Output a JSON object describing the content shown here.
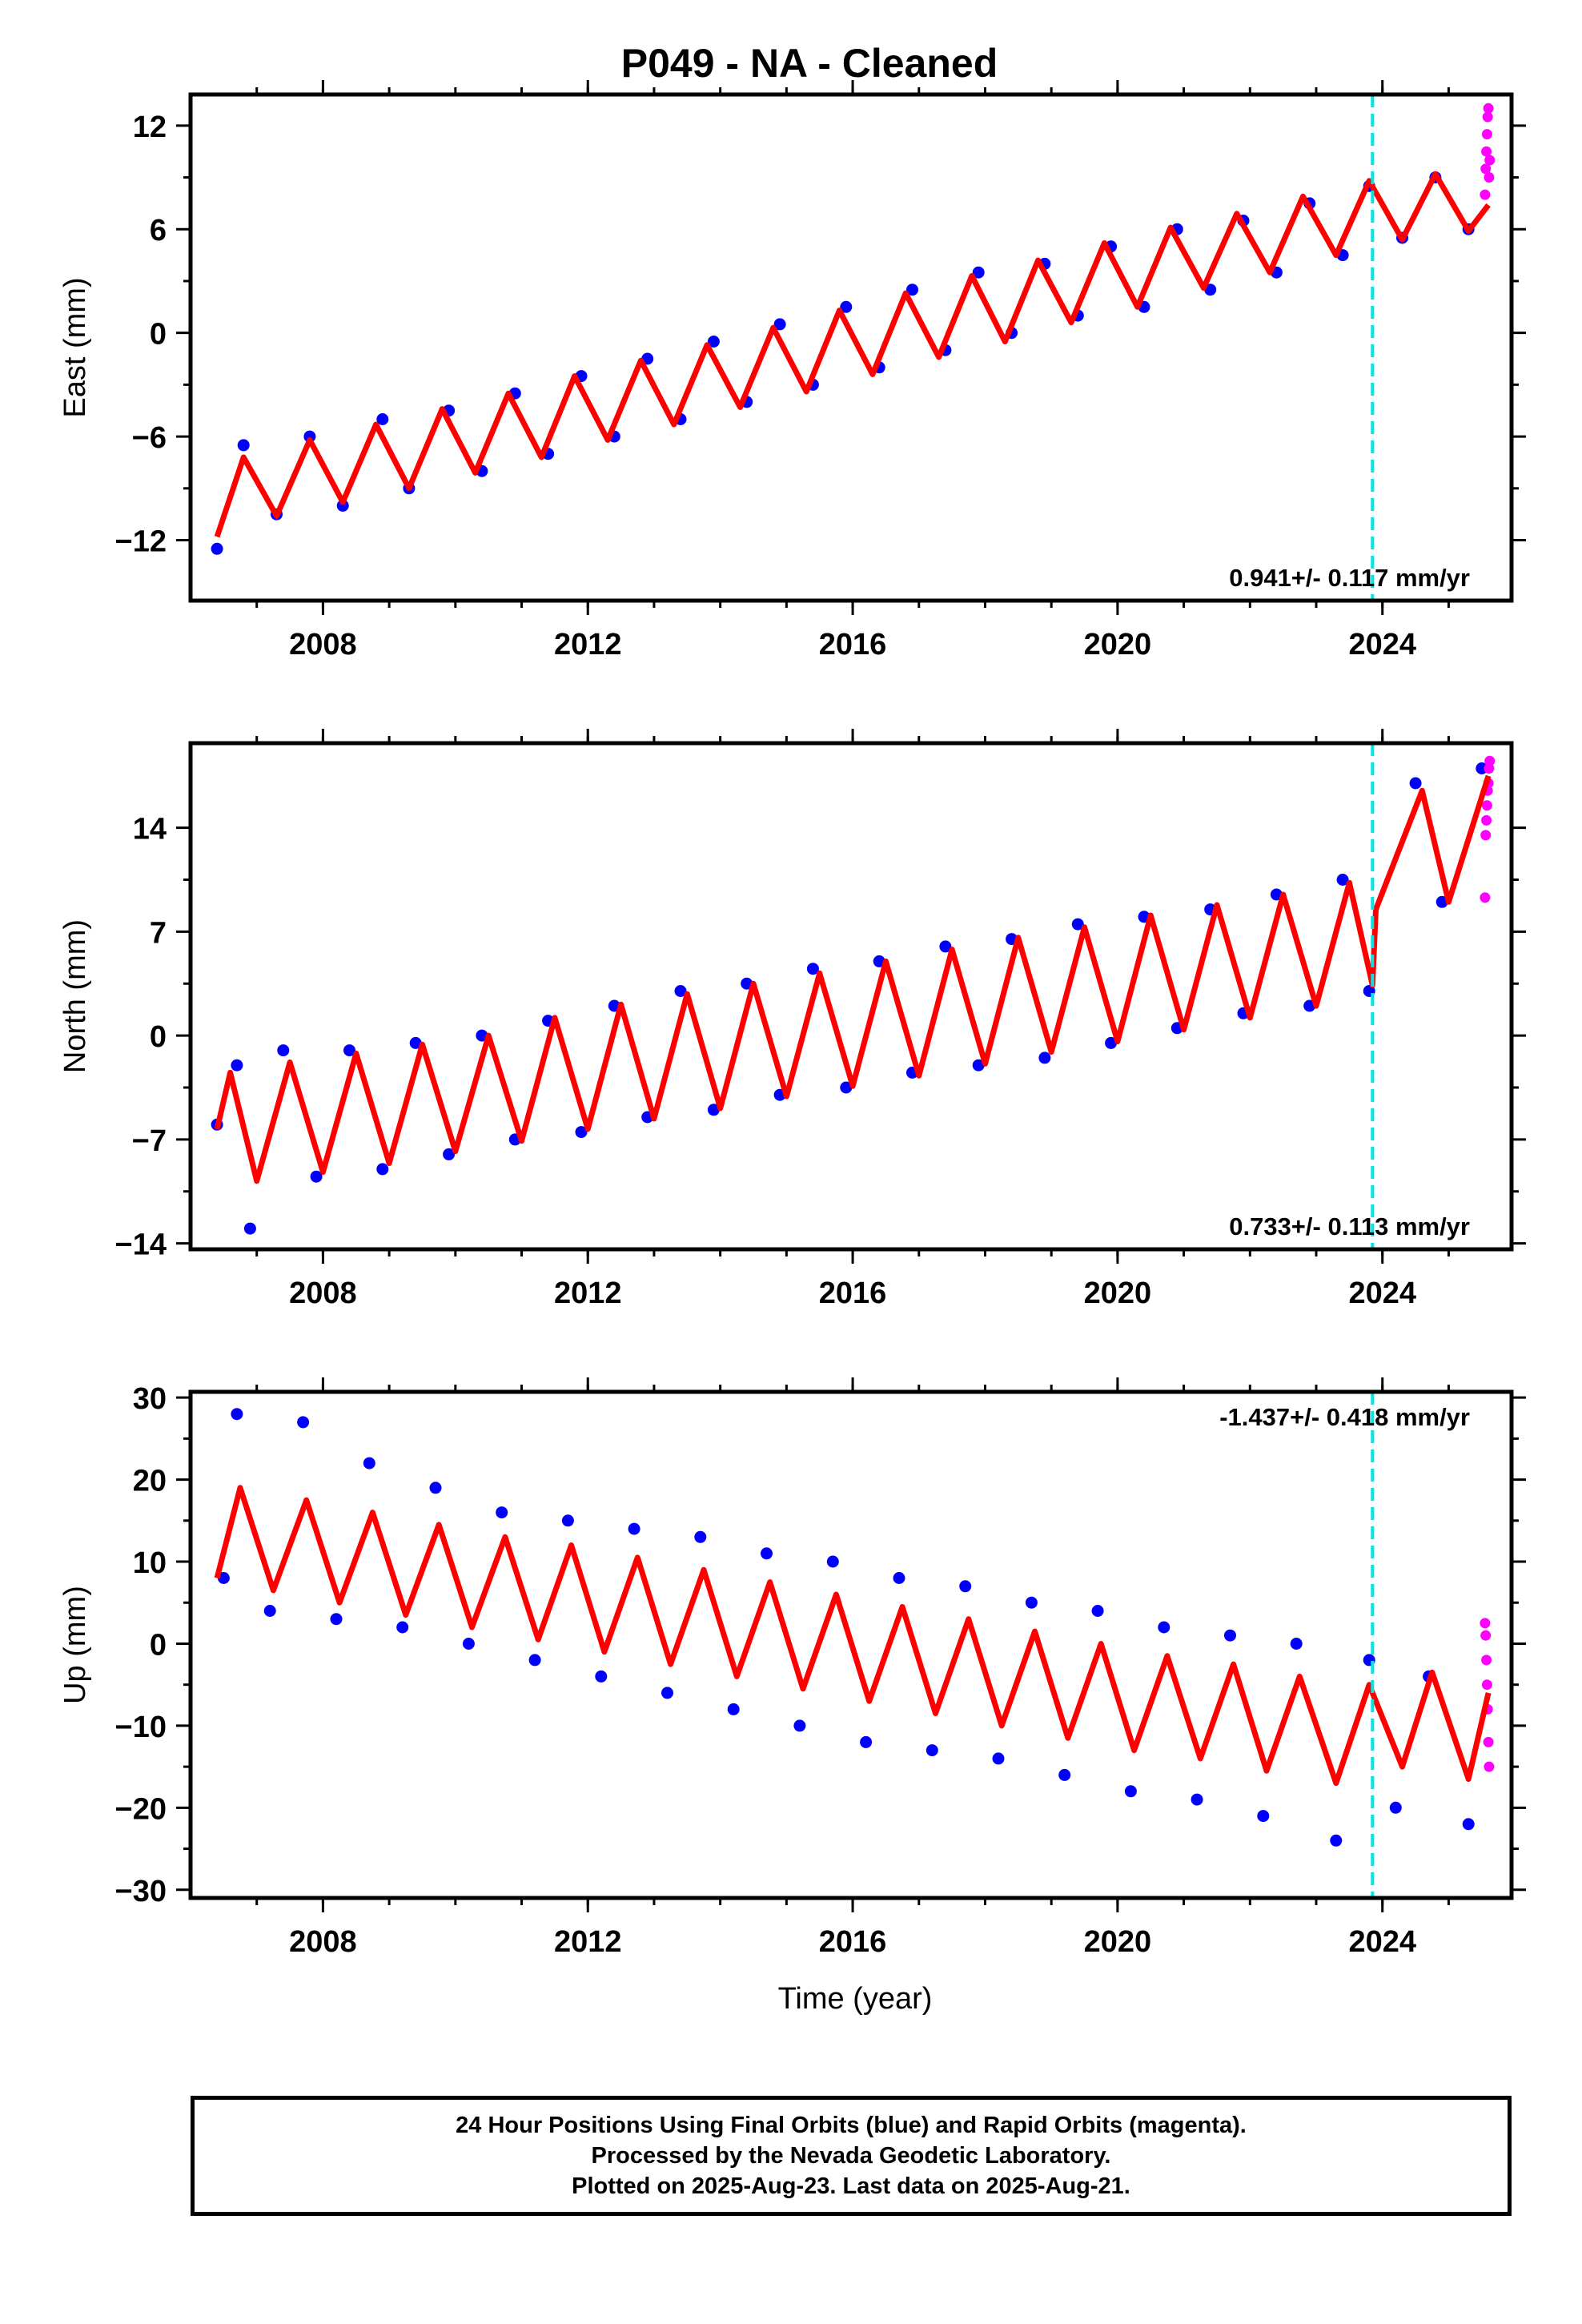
{
  "chart_data": {
    "type": "scatter",
    "title": "P049  - NA - Cleaned",
    "xlabel": "Time (year)",
    "xlim": [
      2006.0,
      2025.95
    ],
    "xticks": [
      2008,
      2012,
      2016,
      2020,
      2024
    ],
    "vertical_marker": {
      "x": 2023.85,
      "color": "#00e5e5",
      "style": "dashed"
    },
    "colors": {
      "final": "#0000ff",
      "rapid": "#ff00ff",
      "model": "#ff0000"
    },
    "panels": [
      {
        "ylabel": "East (mm)",
        "ylim": [
          -15.5,
          13.8
        ],
        "yticks": [
          -12,
          -6,
          0,
          6,
          12
        ],
        "ytick_labels": [
          "−12",
          "−6",
          "0",
          "6",
          "12"
        ],
        "rate_label": "0.941+/- 0.117 mm/yr",
        "rate_position": "bottom-right",
        "series": [
          {
            "type": "scatter",
            "x": [
              2006.4,
              2006.8,
              2007.3,
              2007.8,
              2008.3,
              2008.9,
              2009.3,
              2009.9,
              2010.4,
              2010.9,
              2011.4,
              2011.9,
              2012.4,
              2012.9,
              2013.4,
              2013.9,
              2014.4,
              2014.9,
              2015.4,
              2015.9,
              2016.4,
              2016.9,
              2017.4,
              2017.9,
              2018.4,
              2018.9,
              2019.4,
              2019.9,
              2020.4,
              2020.9,
              2021.4,
              2021.9,
              2022.4,
              2022.9,
              2023.4,
              2023.8,
              2024.3,
              2024.8,
              2025.3
            ],
            "y": [
              -12.5,
              -6.5,
              -10.5,
              -6.0,
              -10.0,
              -5.0,
              -9.0,
              -4.5,
              -8.0,
              -3.5,
              -7.0,
              -2.5,
              -6.0,
              -1.5,
              -5.0,
              -0.5,
              -4.0,
              0.5,
              -3.0,
              1.5,
              -2.0,
              2.5,
              -1.0,
              3.5,
              0.0,
              4.0,
              1.0,
              5.0,
              1.5,
              6.0,
              2.5,
              6.5,
              3.5,
              7.5,
              4.5,
              8.5,
              5.5,
              9.0,
              6.0
            ]
          },
          {
            "type": "rapid",
            "x": [
              2025.55,
              2025.56,
              2025.57,
              2025.58,
              2025.59,
              2025.6,
              2025.61,
              2025.62
            ],
            "y": [
              8.0,
              9.5,
              10.5,
              11.5,
              12.5,
              13.0,
              9.0,
              10.0
            ]
          },
          {
            "type": "model",
            "x": [
              2006.4,
              2006.8,
              2007.3,
              2007.8,
              2008.3,
              2008.8,
              2009.3,
              2009.8,
              2010.3,
              2010.8,
              2011.3,
              2011.8,
              2012.3,
              2012.8,
              2013.3,
              2013.8,
              2014.3,
              2014.8,
              2015.3,
              2015.8,
              2016.3,
              2016.8,
              2017.3,
              2017.8,
              2018.3,
              2018.8,
              2019.3,
              2019.8,
              2020.3,
              2020.8,
              2021.3,
              2021.8,
              2022.3,
              2022.8,
              2023.3,
              2023.8,
              2024.3,
              2024.8,
              2025.3,
              2025.6
            ],
            "y": [
              -11.8,
              -7.2,
              -10.6,
              -6.2,
              -9.8,
              -5.3,
              -9.0,
              -4.4,
              -8.1,
              -3.5,
              -7.2,
              -2.5,
              -6.2,
              -1.6,
              -5.3,
              -0.7,
              -4.3,
              0.3,
              -3.4,
              1.3,
              -2.4,
              2.3,
              -1.4,
              3.3,
              -0.5,
              4.2,
              0.6,
              5.2,
              1.5,
              6.1,
              2.6,
              6.9,
              3.5,
              7.9,
              4.5,
              8.8,
              5.4,
              9.2,
              5.9,
              7.4
            ]
          }
        ]
      },
      {
        "ylabel": "North (mm)",
        "ylim": [
          -14.4,
          19.7
        ],
        "yticks": [
          -14,
          -7,
          0,
          7,
          14
        ],
        "ytick_labels": [
          "−14",
          "−7",
          "0",
          "7",
          "14"
        ],
        "rate_label": "0.733+/- 0.113 mm/yr",
        "rate_position": "bottom-right",
        "series": [
          {
            "type": "scatter",
            "x": [
              2006.4,
              2006.7,
              2006.9,
              2007.4,
              2007.9,
              2008.4,
              2008.9,
              2009.4,
              2009.9,
              2010.4,
              2010.9,
              2011.4,
              2011.9,
              2012.4,
              2012.9,
              2013.4,
              2013.9,
              2014.4,
              2014.9,
              2015.4,
              2015.9,
              2016.4,
              2016.9,
              2017.4,
              2017.9,
              2018.4,
              2018.9,
              2019.4,
              2019.9,
              2020.4,
              2020.9,
              2021.4,
              2021.9,
              2022.4,
              2022.9,
              2023.4,
              2023.8,
              2024.5,
              2024.9,
              2025.5
            ],
            "y": [
              -6.0,
              -2.0,
              -13.0,
              -1.0,
              -9.5,
              -1.0,
              -9.0,
              -0.5,
              -8.0,
              0.0,
              -7.0,
              1.0,
              -6.5,
              2.0,
              -5.5,
              3.0,
              -5.0,
              3.5,
              -4.0,
              4.5,
              -3.5,
              5.0,
              -2.5,
              6.0,
              -2.0,
              6.5,
              -1.5,
              7.5,
              -0.5,
              8.0,
              0.5,
              8.5,
              1.5,
              9.5,
              2.0,
              10.5,
              3.0,
              17.0,
              9.0,
              18.0
            ]
          },
          {
            "type": "rapid",
            "x": [
              2025.55,
              2025.56,
              2025.57,
              2025.58,
              2025.59,
              2025.6,
              2025.61,
              2025.62
            ],
            "y": [
              9.3,
              13.5,
              14.5,
              15.5,
              16.5,
              17.0,
              18.0,
              18.5
            ]
          },
          {
            "type": "model",
            "x": [
              2006.4,
              2006.6,
              2007.0,
              2007.5,
              2008.0,
              2008.5,
              2009.0,
              2009.5,
              2010.0,
              2010.5,
              2011.0,
              2011.5,
              2012.0,
              2012.5,
              2013.0,
              2013.5,
              2014.0,
              2014.5,
              2015.0,
              2015.5,
              2016.0,
              2016.5,
              2017.0,
              2017.5,
              2018.0,
              2018.5,
              2019.0,
              2019.5,
              2020.0,
              2020.5,
              2021.0,
              2021.5,
              2022.0,
              2022.5,
              2023.0,
              2023.5,
              2023.85,
              2023.9,
              2024.6,
              2025.0,
              2025.6
            ],
            "y": [
              -6.3,
              -2.5,
              -9.8,
              -1.8,
              -9.2,
              -1.2,
              -8.6,
              -0.6,
              -7.8,
              0.0,
              -7.1,
              1.2,
              -6.3,
              2.1,
              -5.6,
              2.8,
              -4.9,
              3.5,
              -4.1,
              4.2,
              -3.4,
              5.0,
              -2.7,
              5.8,
              -1.9,
              6.6,
              -1.1,
              7.3,
              -0.4,
              8.1,
              0.4,
              8.8,
              1.2,
              9.5,
              2.0,
              10.3,
              3.4,
              8.5,
              16.5,
              9.0,
              17.5
            ]
          }
        ]
      },
      {
        "ylabel": "Up (mm)",
        "ylim": [
          -31.0,
          30.7
        ],
        "yticks": [
          -30,
          -20,
          -10,
          0,
          10,
          20,
          30
        ],
        "ytick_labels": [
          "−30",
          "−20",
          "−10",
          "0",
          "10",
          "20",
          "30"
        ],
        "rate_label": "-1.437+/- 0.418 mm/yr",
        "rate_position": "top-right",
        "series": [
          {
            "type": "scatter",
            "x": [
              2006.5,
              2006.7,
              2007.2,
              2007.7,
              2008.2,
              2008.7,
              2009.2,
              2009.7,
              2010.2,
              2010.7,
              2011.2,
              2011.7,
              2012.2,
              2012.7,
              2013.2,
              2013.7,
              2014.2,
              2014.7,
              2015.2,
              2015.7,
              2016.2,
              2016.7,
              2017.2,
              2017.7,
              2018.2,
              2018.7,
              2019.2,
              2019.7,
              2020.2,
              2020.7,
              2021.2,
              2021.7,
              2022.2,
              2022.7,
              2023.3,
              2023.8,
              2024.2,
              2024.7,
              2025.3
            ],
            "y": [
              8.0,
              28.0,
              4.0,
              27.0,
              3.0,
              22.0,
              2.0,
              19.0,
              0.0,
              16.0,
              -2.0,
              15.0,
              -4.0,
              14.0,
              -6.0,
              13.0,
              -8.0,
              11.0,
              -10.0,
              10.0,
              -12.0,
              8.0,
              -13.0,
              7.0,
              -14.0,
              5.0,
              -16.0,
              4.0,
              -18.0,
              2.0,
              -19.0,
              1.0,
              -21.0,
              0.0,
              -24.0,
              -2.0,
              -20.0,
              -4.0,
              -22.0
            ]
          },
          {
            "type": "rapid",
            "x": [
              2025.55,
              2025.56,
              2025.57,
              2025.58,
              2025.59,
              2025.6,
              2025.61
            ],
            "y": [
              2.5,
              1.0,
              -2.0,
              -5.0,
              -8.0,
              -12.0,
              -15.0
            ]
          },
          {
            "type": "model",
            "x": [
              2006.4,
              2006.75,
              2007.25,
              2007.75,
              2008.25,
              2008.75,
              2009.25,
              2009.75,
              2010.25,
              2010.75,
              2011.25,
              2011.75,
              2012.25,
              2012.75,
              2013.25,
              2013.75,
              2014.25,
              2014.75,
              2015.25,
              2015.75,
              2016.25,
              2016.75,
              2017.25,
              2017.75,
              2018.25,
              2018.75,
              2019.25,
              2019.75,
              2020.25,
              2020.75,
              2021.25,
              2021.75,
              2022.25,
              2022.75,
              2023.3,
              2023.8,
              2024.3,
              2024.75,
              2025.3,
              2025.6
            ],
            "y": [
              8.0,
              19.0,
              6.5,
              17.5,
              5.0,
              16.0,
              3.5,
              14.5,
              2.0,
              13.0,
              0.5,
              12.0,
              -1.0,
              10.5,
              -2.5,
              9.0,
              -4.0,
              7.5,
              -5.5,
              6.0,
              -7.0,
              4.5,
              -8.5,
              3.0,
              -10.0,
              1.5,
              -11.5,
              0.0,
              -13.0,
              -1.5,
              -14.0,
              -2.5,
              -15.5,
              -4.0,
              -17.0,
              -5.0,
              -15.0,
              -3.5,
              -16.5,
              -6.0
            ]
          }
        ]
      }
    ]
  },
  "footer": {
    "line1": "24 Hour Positions Using Final Orbits (blue) and Rapid Orbits (magenta).",
    "line2": "Processed by the Nevada Geodetic Laboratory.",
    "line3": "Plotted on 2025-Aug-23. Last data on 2025-Aug-21."
  }
}
